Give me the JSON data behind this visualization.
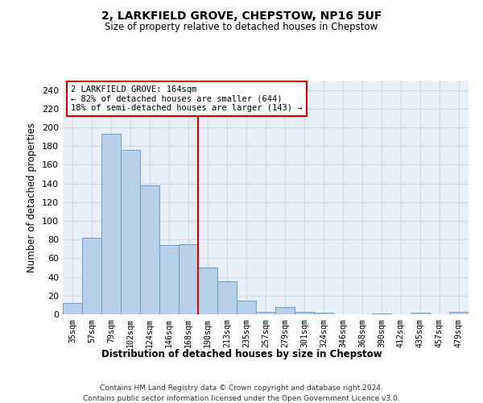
{
  "title": "2, LARKFIELD GROVE, CHEPSTOW, NP16 5UF",
  "subtitle": "Size of property relative to detached houses in Chepstow",
  "xlabel": "Distribution of detached houses by size in Chepstow",
  "ylabel": "Number of detached properties",
  "categories": [
    "35sqm",
    "57sqm",
    "79sqm",
    "102sqm",
    "124sqm",
    "146sqm",
    "168sqm",
    "190sqm",
    "213sqm",
    "235sqm",
    "257sqm",
    "279sqm",
    "301sqm",
    "324sqm",
    "346sqm",
    "368sqm",
    "390sqm",
    "412sqm",
    "435sqm",
    "457sqm",
    "479sqm"
  ],
  "values": [
    12,
    82,
    193,
    176,
    138,
    74,
    75,
    50,
    35,
    15,
    3,
    8,
    3,
    2,
    0,
    0,
    1,
    0,
    2,
    0,
    3
  ],
  "bar_color": "#b8d0e8",
  "bar_edge_color": "#6a9fc8",
  "ref_line_x": 6.5,
  "ref_line_color": "#cc0000",
  "annotation_text": "2 LARKFIELD GROVE: 164sqm\n← 82% of detached houses are smaller (644)\n18% of semi-detached houses are larger (143) →",
  "annotation_box_color": "#ffffff",
  "annotation_box_edge": "#cc0000",
  "footer_line1": "Contains HM Land Registry data © Crown copyright and database right 2024.",
  "footer_line2": "Contains public sector information licensed under the Open Government Licence v3.0.",
  "ylim": [
    0,
    250
  ],
  "yticks": [
    0,
    20,
    40,
    60,
    80,
    100,
    120,
    140,
    160,
    180,
    200,
    220,
    240
  ],
  "grid_color": "#d0d8e8",
  "bg_color": "#e8eef6"
}
